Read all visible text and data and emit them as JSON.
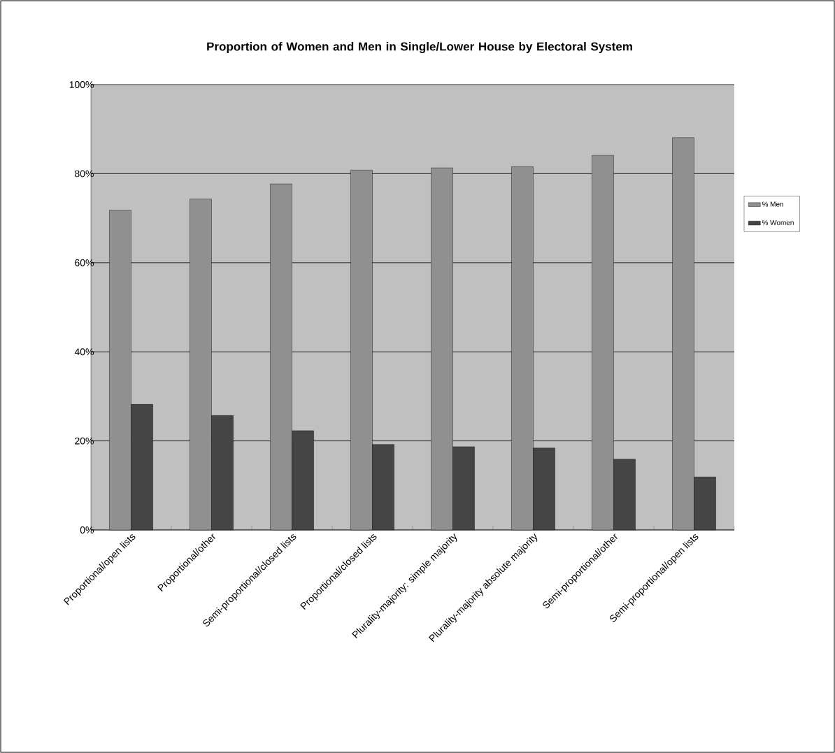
{
  "chart_data": {
    "type": "bar",
    "title": "Proportion of Women and Men in Single/Lower House by Electoral System",
    "categories": [
      "Proportional/open lists",
      "Proportional/other",
      "Semi-proportional/closed lists",
      "Proportional/closed lists",
      "Plurality-majority: simple majority",
      "Plurality-majority absolute majority",
      "Semi-proportional/other",
      "Semi-proportional/open lists"
    ],
    "series": [
      {
        "name": "% Men",
        "color": "#909090",
        "values": [
          71.8,
          74.3,
          77.7,
          80.8,
          81.3,
          81.6,
          84.1,
          88.1
        ]
      },
      {
        "name": "% Women",
        "color": "#454545",
        "values": [
          28.2,
          25.7,
          22.3,
          19.2,
          18.7,
          18.4,
          15.9,
          11.9
        ]
      }
    ],
    "ylim": [
      0,
      100
    ],
    "yticks": [
      {
        "value": 0,
        "label": "0%"
      },
      {
        "value": 20,
        "label": "20%"
      },
      {
        "value": 40,
        "label": "40%"
      },
      {
        "value": 60,
        "label": "60%"
      },
      {
        "value": 80,
        "label": "80%"
      },
      {
        "value": 100,
        "label": "100%"
      }
    ],
    "grid": "y",
    "legend": "right"
  }
}
